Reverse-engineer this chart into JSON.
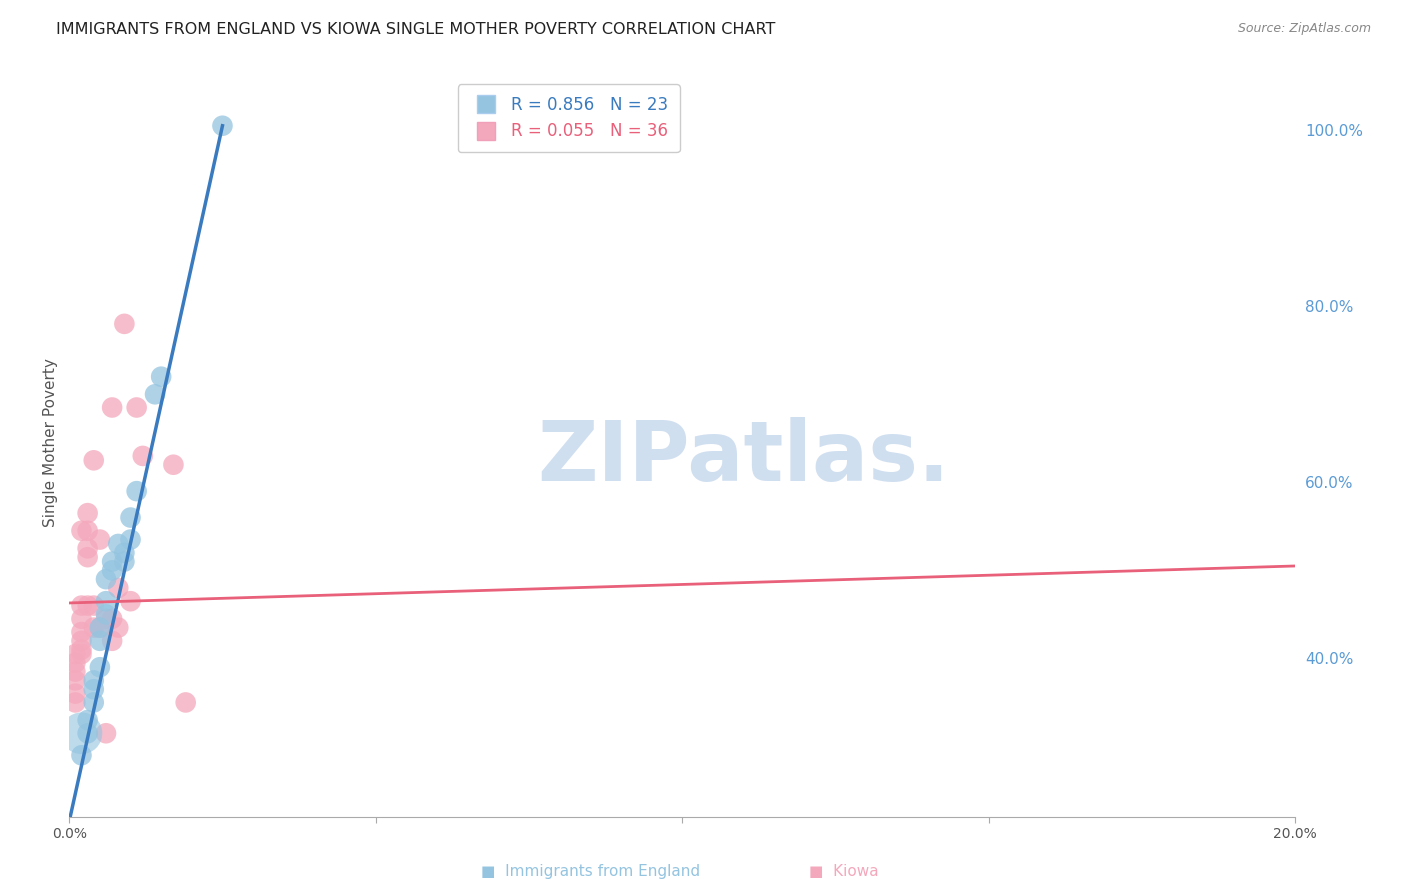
{
  "title": "IMMIGRANTS FROM ENGLAND VS KIOWA SINGLE MOTHER POVERTY CORRELATION CHART",
  "source": "Source: ZipAtlas.com",
  "ylabel": "Single Mother Poverty",
  "legend_label_blue": "Immigrants from England",
  "legend_label_pink": "Kiowa",
  "legend_r_blue": "R = 0.856",
  "legend_n_blue": "N = 23",
  "legend_r_pink": "R = 0.055",
  "legend_n_pink": "N = 36",
  "xlim": [
    0.0,
    0.2
  ],
  "ylim": [
    0.22,
    1.07
  ],
  "xticks": [
    0.0,
    0.05,
    0.1,
    0.15,
    0.2
  ],
  "xtick_labels": [
    "0.0%",
    "",
    "",
    "",
    "20.0%"
  ],
  "yticks_right": [
    0.4,
    0.6,
    0.8,
    1.0
  ],
  "ytick_labels_right": [
    "40.0%",
    "60.0%",
    "80.0%",
    "100.0%"
  ],
  "blue_color": "#94c4e0",
  "pink_color": "#f4a8bc",
  "blue_line_color": "#3a7bbf",
  "pink_line_color": "#e8607a",
  "watermark": "ZIPatlas.",
  "blue_scatter": [
    [
      0.002,
      0.29
    ],
    [
      0.003,
      0.315
    ],
    [
      0.003,
      0.33
    ],
    [
      0.004,
      0.35
    ],
    [
      0.004,
      0.365
    ],
    [
      0.004,
      0.375
    ],
    [
      0.005,
      0.39
    ],
    [
      0.005,
      0.42
    ],
    [
      0.005,
      0.435
    ],
    [
      0.006,
      0.45
    ],
    [
      0.006,
      0.465
    ],
    [
      0.006,
      0.49
    ],
    [
      0.007,
      0.5
    ],
    [
      0.007,
      0.51
    ],
    [
      0.008,
      0.53
    ],
    [
      0.009,
      0.51
    ],
    [
      0.009,
      0.52
    ],
    [
      0.01,
      0.535
    ],
    [
      0.01,
      0.56
    ],
    [
      0.011,
      0.59
    ],
    [
      0.014,
      0.7
    ],
    [
      0.015,
      0.72
    ],
    [
      0.025,
      1.005
    ]
  ],
  "pink_scatter": [
    [
      0.001,
      0.35
    ],
    [
      0.001,
      0.36
    ],
    [
      0.001,
      0.375
    ],
    [
      0.001,
      0.385
    ],
    [
      0.001,
      0.395
    ],
    [
      0.001,
      0.405
    ],
    [
      0.002,
      0.405
    ],
    [
      0.002,
      0.41
    ],
    [
      0.002,
      0.42
    ],
    [
      0.002,
      0.43
    ],
    [
      0.002,
      0.445
    ],
    [
      0.002,
      0.46
    ],
    [
      0.002,
      0.545
    ],
    [
      0.003,
      0.46
    ],
    [
      0.003,
      0.515
    ],
    [
      0.003,
      0.525
    ],
    [
      0.003,
      0.545
    ],
    [
      0.003,
      0.565
    ],
    [
      0.004,
      0.435
    ],
    [
      0.004,
      0.46
    ],
    [
      0.004,
      0.625
    ],
    [
      0.005,
      0.435
    ],
    [
      0.005,
      0.535
    ],
    [
      0.006,
      0.315
    ],
    [
      0.006,
      0.445
    ],
    [
      0.007,
      0.42
    ],
    [
      0.007,
      0.445
    ],
    [
      0.007,
      0.685
    ],
    [
      0.008,
      0.435
    ],
    [
      0.008,
      0.48
    ],
    [
      0.009,
      0.78
    ],
    [
      0.01,
      0.465
    ],
    [
      0.011,
      0.685
    ],
    [
      0.012,
      0.63
    ],
    [
      0.017,
      0.62
    ],
    [
      0.019,
      0.35
    ]
  ],
  "blue_line_x": [
    0.0,
    0.025
  ],
  "blue_line_y": [
    0.215,
    1.005
  ],
  "pink_line_x": [
    0.0,
    0.2
  ],
  "pink_line_y": [
    0.463,
    0.505
  ],
  "background_color": "#ffffff",
  "grid_color": "#d0d0d0",
  "title_fontsize": 11.5,
  "axis_label_fontsize": 11,
  "tick_fontsize": 10,
  "watermark_color": "#d0dff0",
  "watermark_fontsize": 60,
  "marker_size": 220
}
